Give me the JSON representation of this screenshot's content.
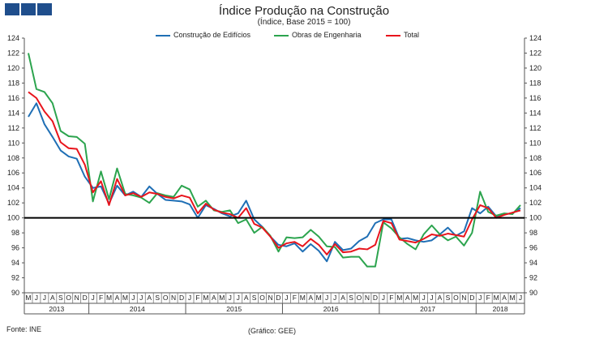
{
  "header": {
    "title": "Índice Produção na Construção",
    "subtitle": "(Índice, Base 2015 = 100)"
  },
  "footer": {
    "source": "Fonte:  INE",
    "credit": "(Gráfico:  GEE)"
  },
  "colors": {
    "logo": "#1f4e8c",
    "edificios": "#1f6fb5",
    "engenharia": "#2ca44e",
    "total": "#e8141c",
    "reference": "#000000"
  },
  "chart_data": {
    "type": "line",
    "title": "Índice Produção na Construção",
    "subtitle": "(Índice, Base 2015 = 100)",
    "ylim": [
      90,
      124
    ],
    "yticks": [
      90,
      92,
      94,
      96,
      98,
      100,
      102,
      104,
      106,
      108,
      110,
      112,
      114,
      116,
      118,
      120,
      122,
      124
    ],
    "reference_line": 100,
    "legend_position": "top",
    "month_labels": [
      "M",
      "J",
      "J",
      "A",
      "S",
      "O",
      "N",
      "D",
      "J",
      "F",
      "M",
      "A",
      "M",
      "J",
      "J",
      "A",
      "S",
      "O",
      "N",
      "D",
      "J",
      "F",
      "M",
      "A",
      "M",
      "J",
      "J",
      "A",
      "S",
      "O",
      "N",
      "D",
      "J",
      "F",
      "M",
      "A",
      "M",
      "J",
      "J",
      "A",
      "S",
      "O",
      "N",
      "D",
      "J",
      "F",
      "M",
      "A",
      "M",
      "J",
      "J",
      "A",
      "S",
      "O",
      "N",
      "D",
      "J",
      "F",
      "M",
      "A",
      "M",
      "J"
    ],
    "years": [
      {
        "label": "2013",
        "start": 0,
        "end": 8
      },
      {
        "label": "2014",
        "start": 8,
        "end": 20
      },
      {
        "label": "2015",
        "start": 20,
        "end": 32
      },
      {
        "label": "2016",
        "start": 32,
        "end": 44
      },
      {
        "label": "2017",
        "start": 44,
        "end": 56
      },
      {
        "label": "2018",
        "start": 56,
        "end": 62
      }
    ],
    "series": [
      {
        "name": "Construção de Edifícios",
        "color": "#1f6fb5",
        "values": [
          113.5,
          115.3,
          112.5,
          110.8,
          109.0,
          108.2,
          107.9,
          105.5,
          104.0,
          104.2,
          101.9,
          104.3,
          103.0,
          103.5,
          102.8,
          104.2,
          103.2,
          102.4,
          102.3,
          102.2,
          101.8,
          100.0,
          101.7,
          101.2,
          100.6,
          100.2,
          100.6,
          102.3,
          99.8,
          98.8,
          97.5,
          96.4,
          96.2,
          96.6,
          95.5,
          96.5,
          95.6,
          94.2,
          96.8,
          95.7,
          95.9,
          96.9,
          97.5,
          99.3,
          99.8,
          99.8,
          97.2,
          97.3,
          97.0,
          96.8,
          97.0,
          97.8,
          98.7,
          97.6,
          98.2,
          101.3,
          100.6,
          101.5,
          100.2,
          100.5,
          100.6,
          101.3
        ]
      },
      {
        "name": "Obras de Engenharia",
        "color": "#2ca44e",
        "values": [
          122.0,
          117.2,
          116.8,
          115.3,
          111.6,
          110.9,
          110.8,
          109.9,
          102.2,
          106.2,
          102.5,
          106.6,
          103.2,
          103.0,
          102.7,
          102.0,
          103.3,
          103.0,
          102.8,
          104.3,
          103.8,
          101.5,
          102.3,
          101.0,
          100.8,
          101.0,
          99.3,
          99.8,
          98.0,
          98.8,
          97.6,
          95.5,
          97.4,
          97.3,
          97.4,
          98.4,
          97.5,
          96.2,
          96.1,
          94.7,
          94.8,
          94.8,
          93.5,
          93.5,
          99.4,
          98.6,
          97.4,
          96.5,
          95.8,
          97.8,
          99.0,
          97.8,
          97.0,
          97.5,
          96.3,
          98.0,
          103.5,
          100.8,
          100.3,
          100.6,
          100.5,
          101.7
        ]
      },
      {
        "name": "Total",
        "color": "#e8141c",
        "values": [
          116.8,
          116.0,
          114.2,
          112.9,
          110.1,
          109.3,
          109.2,
          107.1,
          103.4,
          104.9,
          101.7,
          105.2,
          103.0,
          103.3,
          102.8,
          103.4,
          103.2,
          102.8,
          102.6,
          103.0,
          102.7,
          100.6,
          101.9,
          101.1,
          100.7,
          100.5,
          100.0,
          101.3,
          99.2,
          98.7,
          97.5,
          96.0,
          96.6,
          96.8,
          96.2,
          97.2,
          96.4,
          95.1,
          96.5,
          95.4,
          95.5,
          95.9,
          95.8,
          96.4,
          99.6,
          99.3,
          97.1,
          96.9,
          96.7,
          97.2,
          97.8,
          97.6,
          97.9,
          97.7,
          97.5,
          99.8,
          101.7,
          101.3,
          100.0,
          100.4,
          100.7,
          101.0
        ]
      }
    ]
  }
}
